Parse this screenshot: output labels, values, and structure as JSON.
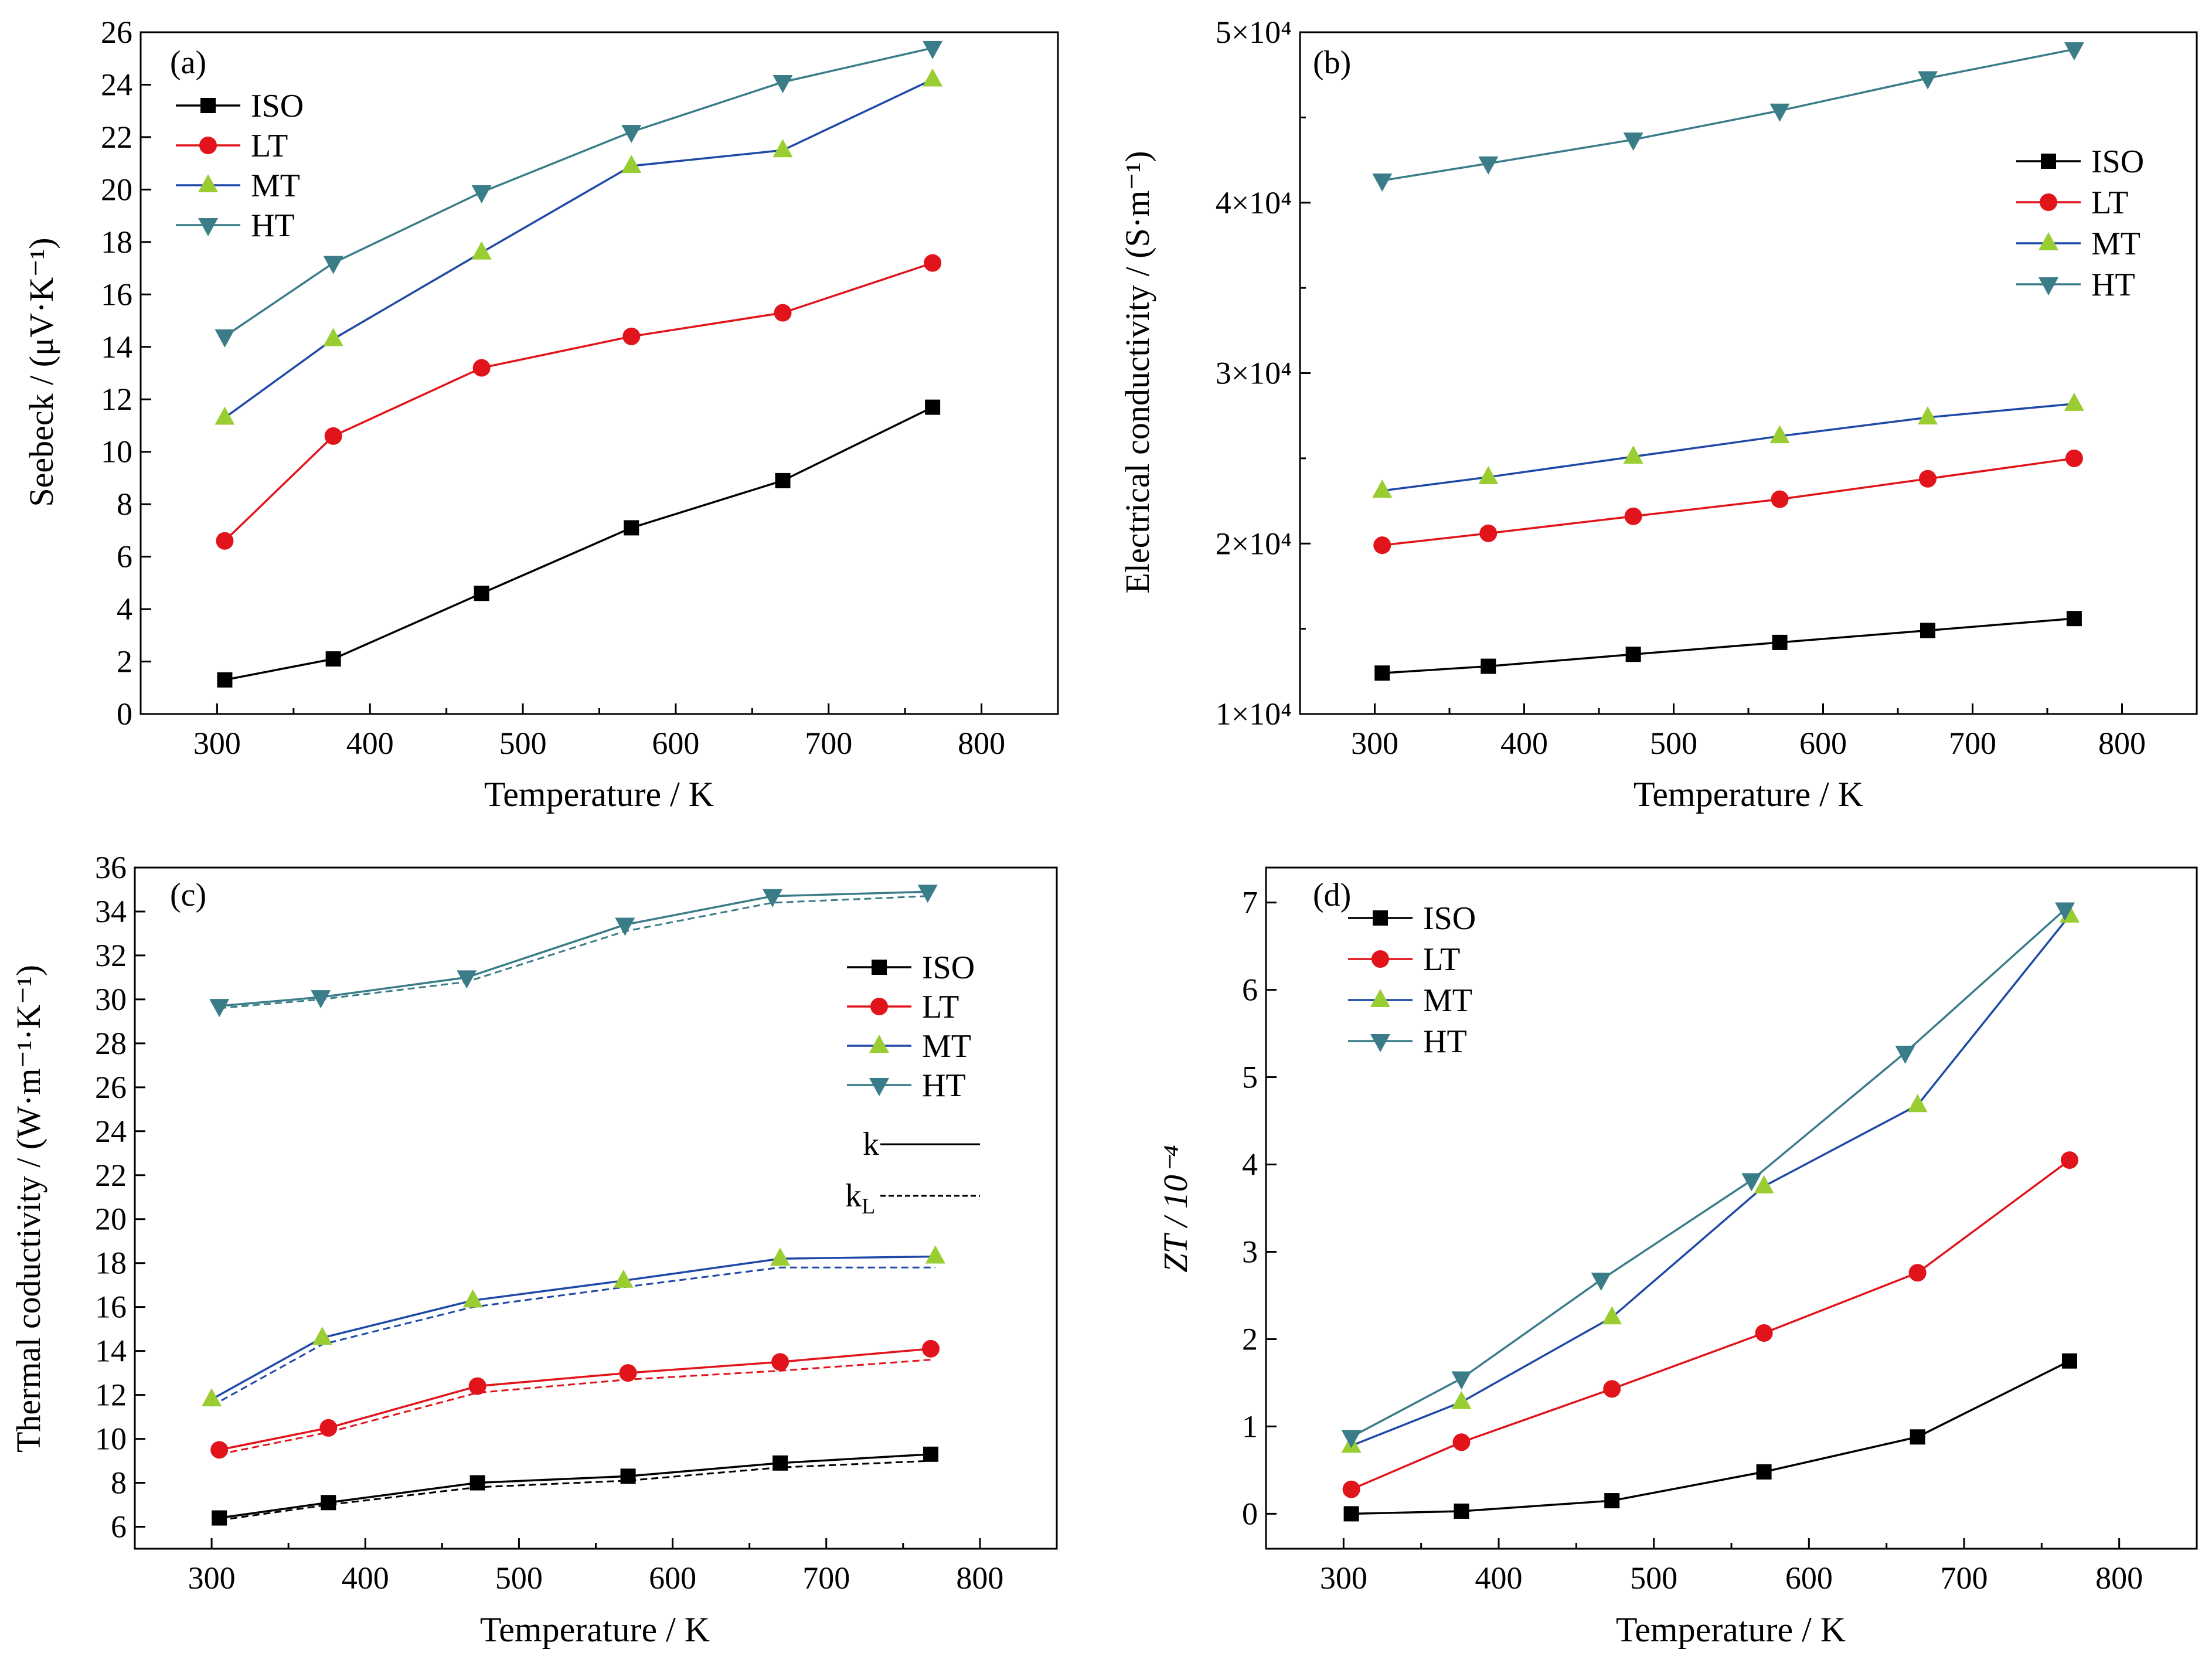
{
  "colors": {
    "ISO": "#000000",
    "LT": "#e2141b",
    "MT": "#1f49a6",
    "HT": "#3a7d88",
    "MT_marker": "#9acd32"
  },
  "chart_data": [
    {
      "type": "line",
      "panel": "(a)",
      "xlabel": "Temperature / K",
      "ylabel": "Seebeck / (μV·K⁻¹)",
      "xlim": [
        250,
        850
      ],
      "ylim": [
        0,
        26
      ],
      "xticks": [
        300,
        400,
        500,
        600,
        700,
        800
      ],
      "yticks": [
        0,
        2,
        4,
        6,
        8,
        10,
        12,
        14,
        16,
        18,
        20,
        22,
        24,
        26
      ],
      "ytick_labels": [
        "0",
        "2",
        "4",
        "6",
        "8",
        "10",
        "12",
        "14",
        "16",
        "18",
        "20",
        "22",
        "24",
        "26"
      ],
      "legend": "top-left",
      "series": [
        {
          "name": "ISO",
          "marker": "square",
          "x": [
            305,
            376,
            473,
            571,
            670,
            768
          ],
          "y": [
            1.3,
            2.1,
            4.6,
            7.1,
            8.9,
            11.7
          ]
        },
        {
          "name": "LT",
          "marker": "circle",
          "x": [
            305,
            376,
            473,
            571,
            670,
            768
          ],
          "y": [
            6.6,
            10.6,
            13.2,
            14.4,
            15.3,
            17.2
          ]
        },
        {
          "name": "MT",
          "marker": "triangle-up",
          "x": [
            305,
            376,
            473,
            571,
            670,
            768
          ],
          "y": [
            11.3,
            14.3,
            17.6,
            20.9,
            21.5,
            24.2
          ]
        },
        {
          "name": "HT",
          "marker": "triangle-down",
          "x": [
            305,
            376,
            473,
            571,
            670,
            768
          ],
          "y": [
            14.4,
            17.2,
            19.9,
            22.2,
            24.1,
            25.4
          ]
        }
      ]
    },
    {
      "type": "line",
      "panel": "(b)",
      "xlabel": "Temperature / K",
      "ylabel": "Electrical conductivity / (S·m⁻¹)",
      "xlim": [
        250,
        850
      ],
      "ylim": [
        10000,
        50000
      ],
      "xticks": [
        300,
        400,
        500,
        600,
        700,
        800
      ],
      "yticks": [
        10000,
        20000,
        30000,
        40000,
        50000
      ],
      "ytick_labels": [
        "1×10⁴",
        "2×10⁴",
        "3×10⁴",
        "4×10⁴",
        "5×10⁴"
      ],
      "minor_yticks": [
        15000,
        25000,
        35000,
        45000
      ],
      "legend": "top-right",
      "series": [
        {
          "name": "ISO",
          "marker": "square",
          "x": [
            305,
            376,
            473,
            571,
            670,
            768
          ],
          "y": [
            12400,
            12800,
            13500,
            14200,
            14900,
            15600
          ]
        },
        {
          "name": "LT",
          "marker": "circle",
          "x": [
            305,
            376,
            473,
            571,
            670,
            768
          ],
          "y": [
            19900,
            20600,
            21600,
            22600,
            23800,
            25000
          ]
        },
        {
          "name": "MT",
          "marker": "triangle-up",
          "x": [
            305,
            376,
            473,
            571,
            670,
            768
          ],
          "y": [
            23100,
            23900,
            25100,
            26300,
            27400,
            28200
          ]
        },
        {
          "name": "HT",
          "marker": "triangle-down",
          "x": [
            305,
            376,
            473,
            571,
            670,
            768
          ],
          "y": [
            41300,
            42300,
            43700,
            45400,
            47300,
            49000
          ]
        }
      ]
    },
    {
      "type": "line",
      "panel": "(c)",
      "xlabel": "Temperature / K",
      "ylabel": "Thermal coductivity / (W·m⁻¹·K⁻¹)",
      "xlim": [
        250,
        850
      ],
      "ylim": [
        5,
        36
      ],
      "xticks": [
        300,
        400,
        500,
        600,
        700,
        800
      ],
      "yticks": [
        6,
        8,
        10,
        12,
        14,
        16,
        18,
        20,
        22,
        24,
        26,
        28,
        30,
        32,
        34,
        36
      ],
      "ytick_labels": [
        "6",
        "8",
        "10",
        "12",
        "14",
        "16",
        "18",
        "20",
        "22",
        "24",
        "26",
        "28",
        "30",
        "32",
        "34",
        "36"
      ],
      "legend": "right",
      "line_legend": [
        "k",
        "k_L"
      ],
      "series": [
        {
          "name": "ISO",
          "marker": "square",
          "x": [
            305,
            376,
            473,
            571,
            670,
            768
          ],
          "y": [
            6.4,
            7.1,
            8.0,
            8.3,
            8.9,
            9.3
          ],
          "kL": [
            6.3,
            7.0,
            7.8,
            8.1,
            8.7,
            9.0
          ]
        },
        {
          "name": "LT",
          "marker": "circle",
          "x": [
            305,
            376,
            473,
            571,
            670,
            768
          ],
          "y": [
            9.5,
            10.5,
            12.4,
            13.0,
            13.5,
            14.1
          ],
          "kL": [
            9.3,
            10.3,
            12.1,
            12.7,
            13.1,
            13.6
          ]
        },
        {
          "name": "MT",
          "marker": "triangle-up",
          "x": [
            300,
            372,
            470,
            568,
            670,
            771
          ],
          "y": [
            11.8,
            14.6,
            16.3,
            17.2,
            18.2,
            18.3
          ],
          "kL": [
            11.5,
            14.3,
            16.0,
            16.9,
            17.8,
            17.8
          ]
        },
        {
          "name": "HT",
          "marker": "triangle-down",
          "x": [
            305,
            371,
            466,
            569,
            665,
            766
          ],
          "y": [
            29.7,
            30.1,
            31.0,
            33.4,
            34.7,
            34.9
          ],
          "kL": [
            29.6,
            30.0,
            30.8,
            33.1,
            34.4,
            34.7
          ]
        }
      ]
    },
    {
      "type": "line",
      "panel": "(d)",
      "xlabel": "Temperature / K",
      "ylabel": "ZT / 10⁻⁴",
      "xlim": [
        250,
        850
      ],
      "ylim": [
        -0.4,
        7.4
      ],
      "xticks": [
        300,
        400,
        500,
        600,
        700,
        800
      ],
      "yticks": [
        0,
        1,
        2,
        3,
        4,
        5,
        6,
        7
      ],
      "ytick_labels": [
        "0",
        "1",
        "2",
        "3",
        "4",
        "5",
        "6",
        "7"
      ],
      "legend": "top-left",
      "series": [
        {
          "name": "ISO",
          "marker": "square",
          "x": [
            305,
            376,
            473,
            571,
            670,
            768
          ],
          "y": [
            0.0,
            0.03,
            0.15,
            0.48,
            0.88,
            1.75
          ]
        },
        {
          "name": "LT",
          "marker": "circle",
          "x": [
            305,
            376,
            473,
            571,
            670,
            768
          ],
          "y": [
            0.28,
            0.82,
            1.43,
            2.07,
            2.76,
            4.05
          ]
        },
        {
          "name": "MT",
          "marker": "triangle-up",
          "x": [
            305,
            376,
            473,
            571,
            670,
            768
          ],
          "y": [
            0.78,
            1.28,
            2.25,
            3.75,
            4.68,
            6.85
          ]
        },
        {
          "name": "HT",
          "marker": "triangle-down",
          "x": [
            305,
            376,
            466,
            563,
            662,
            765
          ],
          "y": [
            0.88,
            1.55,
            2.68,
            3.82,
            5.28,
            6.92
          ]
        }
      ]
    }
  ]
}
